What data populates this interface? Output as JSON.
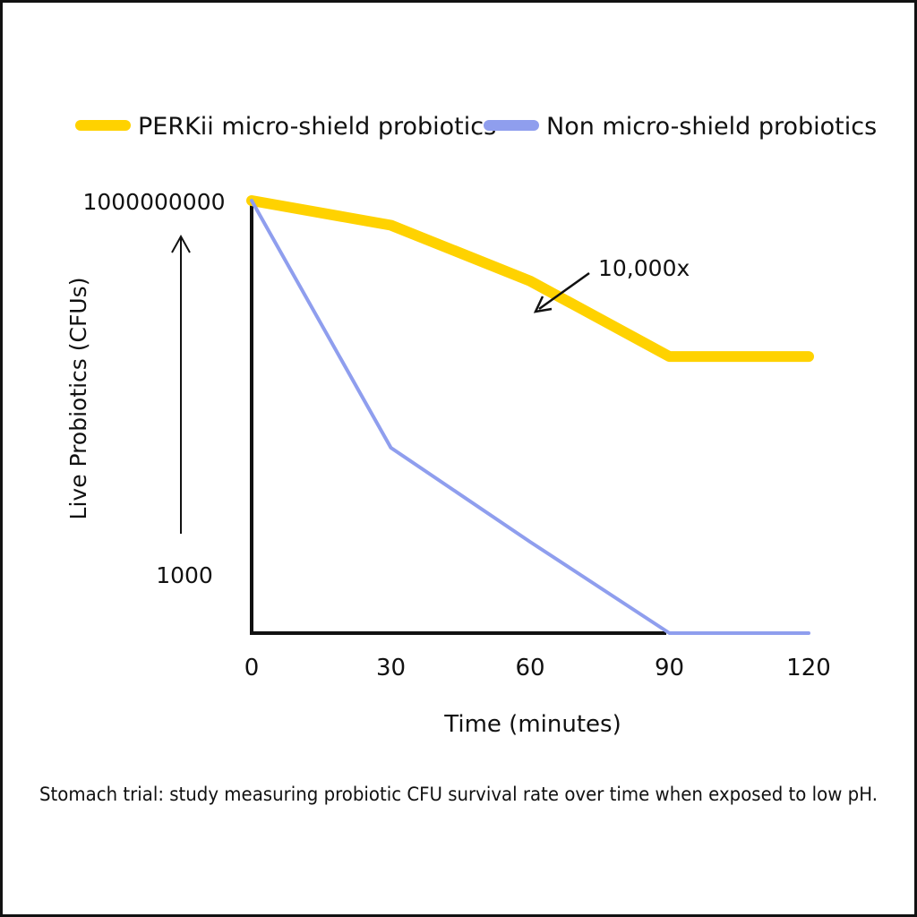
{
  "chart_data": {
    "type": "line",
    "x": [
      0,
      30,
      60,
      90,
      120
    ],
    "xticks": [
      "0",
      "30",
      "60",
      "90",
      "120"
    ],
    "xlabel": "Time (minutes)",
    "ylabel": "Live Probiotics (CFUs)",
    "yticks": [
      "1000000000",
      "1000"
    ],
    "yscale": "log",
    "ylim": [
      100,
      1000000000
    ],
    "grid": false,
    "legend_position": "top",
    "series": [
      {
        "name": "PERKii micro-shield probiotics",
        "color": "#FFD200",
        "values": [
          1000000000,
          400000000,
          50000000,
          3000000,
          3000000
        ]
      },
      {
        "name": "Non micro-shield probiotics",
        "color": "#8F9EEE",
        "values": [
          1000000000,
          100000,
          3000,
          100,
          100
        ]
      }
    ],
    "annotations": [
      {
        "text": "10,000x",
        "x": 60,
        "y": 50000000
      }
    ],
    "caption": "Stomach trial: study measuring probiotic CFU survival rate over time when exposed to low pH."
  }
}
